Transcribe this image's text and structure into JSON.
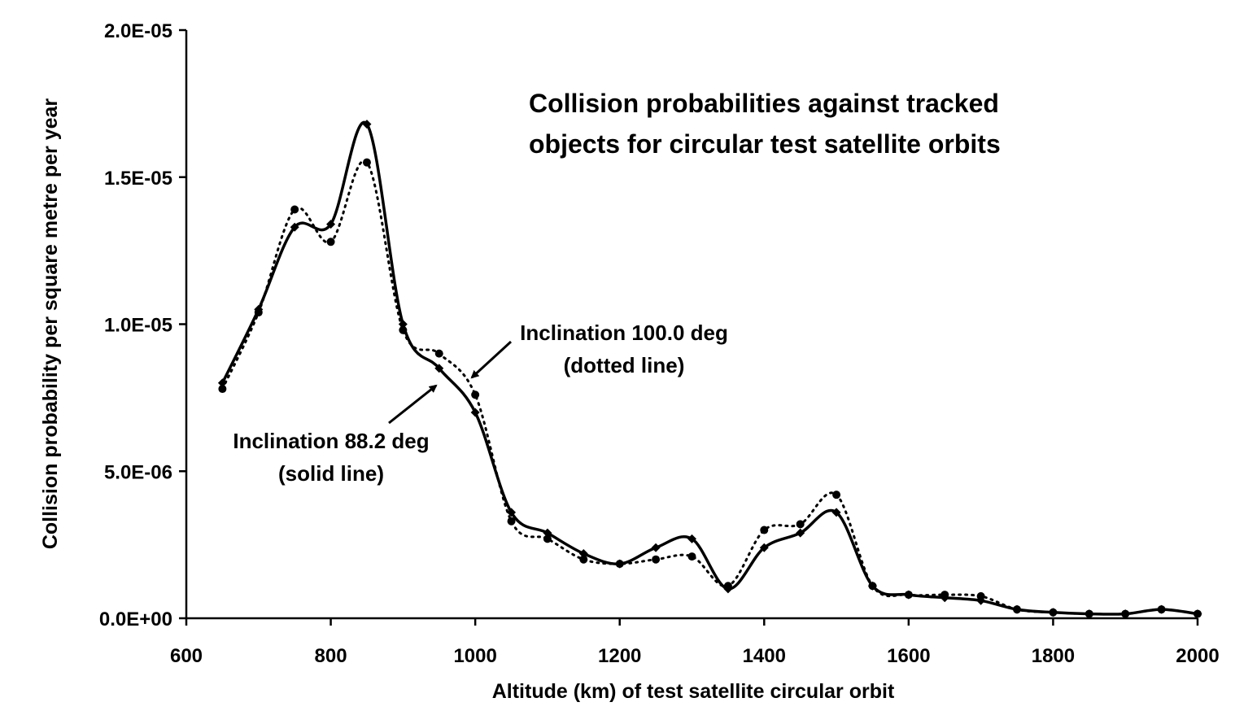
{
  "chart_data": {
    "type": "line",
    "title": "Collision probabilities against tracked",
    "title_line2": "objects for circular test satellite orbits",
    "xlabel": "Altitude (km) of test satellite circular orbit",
    "ylabel": "Collision probability per square metre per year",
    "xlim": [
      600,
      2000
    ],
    "ylim": [
      0,
      2e-05
    ],
    "xticks": [
      600,
      800,
      1000,
      1200,
      1400,
      1600,
      1800,
      2000
    ],
    "xtick_labels": [
      "600",
      "800",
      "1000",
      "1200",
      "1400",
      "1600",
      "1800",
      "2000"
    ],
    "yticks": [
      0,
      5e-06,
      1e-05,
      1.5e-05,
      2e-05
    ],
    "ytick_labels": [
      "0.0E+00",
      "5.0E-06",
      "1.0E-05",
      "1.5E-05",
      "2.0E-05"
    ],
    "grid": false,
    "x": [
      650,
      700,
      750,
      800,
      850,
      900,
      950,
      1000,
      1050,
      1100,
      1150,
      1200,
      1250,
      1300,
      1350,
      1400,
      1450,
      1500,
      1550,
      1600,
      1650,
      1700,
      1750,
      1800,
      1850,
      1900,
      1950,
      2000
    ],
    "series": [
      {
        "style": "solid",
        "marker": "diamond",
        "color": "#000000",
        "values": [
          8e-06,
          1.05e-05,
          1.33e-05,
          1.34e-05,
          1.68e-05,
          1e-05,
          8.5e-06,
          7e-06,
          3.6e-06,
          2.9e-06,
          2.2e-06,
          1.85e-06,
          2.4e-06,
          2.7e-06,
          1e-06,
          2.4e-06,
          2.9e-06,
          3.6e-06,
          1.1e-06,
          8e-07,
          7e-07,
          6e-07,
          3e-07,
          2e-07,
          1.5e-07,
          1.5e-07,
          3e-07,
          1.5e-07
        ]
      },
      {
        "style": "dotted",
        "marker": "circle",
        "color": "#000000",
        "values": [
          7.8e-06,
          1.04e-05,
          1.39e-05,
          1.28e-05,
          1.55e-05,
          9.8e-06,
          9e-06,
          7.6e-06,
          3.3e-06,
          2.7e-06,
          2e-06,
          1.85e-06,
          2e-06,
          2.1e-06,
          1.1e-06,
          3e-06,
          3.2e-06,
          4.2e-06,
          1.1e-06,
          8e-07,
          8e-07,
          7.5e-07,
          3e-07,
          2e-07,
          1.5e-07,
          1.5e-07,
          3e-07,
          1.5e-07
        ]
      }
    ],
    "annotations": [
      {
        "line1": "Inclination 100.0 deg",
        "line2": "(dotted line)",
        "points_to": [
          990,
          8.1e-06
        ]
      },
      {
        "line1": "Inclination 88.2 deg",
        "line2": "(solid line)",
        "points_to": [
          960,
          8e-06
        ]
      }
    ]
  }
}
